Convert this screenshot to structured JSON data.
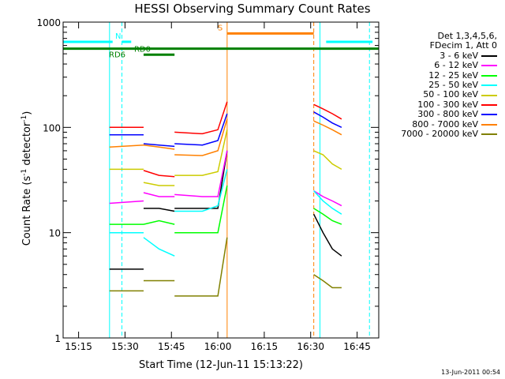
{
  "chart_data": {
    "type": "line",
    "title": "HESSI Observing Summary Count Rates",
    "xlabel": "Start Time (12-Jun-11 15:13:22)",
    "ylabel": "Count Rate (s",
    "ylabel_sup": "-1",
    "ylabel_mid": " detector",
    "ylabel_end": ")",
    "y_scale": "log",
    "ylim": [
      1,
      1000
    ],
    "xlim": [
      "15:10",
      "16:52"
    ],
    "x_tick_labels": [
      "15:15",
      "15:30",
      "15:45",
      "16:00",
      "16:15",
      "16:30",
      "16:45"
    ],
    "y_tick_labels": [
      "1",
      "10",
      "100",
      "1000"
    ],
    "grid": false,
    "legend_position": "top-right",
    "legend_header": [
      "Det 1,3,4,5,6,",
      "FDecim 1, Att 0"
    ],
    "legend_entries": [
      "3 - 6 keV",
      "6 - 12 keV",
      "12 - 25 keV",
      "25 - 50 keV",
      "50 - 100 keV",
      "100 - 300 keV",
      "300 - 800 keV",
      "800 - 7000 keV",
      "7000 - 20000 keV"
    ],
    "colors": [
      "#000000",
      "#ff00ff",
      "#00ff00",
      "#00ffff",
      "#cccc00",
      "#ff0000",
      "#0000ff",
      "#ff8000",
      "#808000"
    ],
    "segments": [
      {
        "start": "15:25",
        "end": "15:36",
        "values": [
          [
            "15:25",
            4.5,
            19,
            12,
            10,
            40,
            100,
            85,
            65,
            2.8
          ],
          [
            "15:36",
            4.5,
            20,
            12,
            10,
            40,
            100,
            85,
            68,
            2.8
          ]
        ]
      },
      {
        "start": "15:36",
        "end": "15:46",
        "values": [
          [
            "15:36",
            17,
            24,
            12,
            9,
            30,
            39,
            70,
            68,
            3.5
          ],
          [
            "15:41",
            17,
            22,
            13,
            7,
            28,
            35,
            68,
            65,
            3.5
          ],
          [
            "15:46",
            16,
            22,
            12,
            6,
            28,
            34,
            66,
            62,
            3.5
          ]
        ]
      },
      {
        "start": "15:46",
        "end": "16:03",
        "values": [
          [
            "15:46",
            17,
            23,
            10,
            16,
            35,
            90,
            70,
            55,
            2.5
          ],
          [
            "15:55",
            17,
            22,
            10,
            16,
            35,
            87,
            68,
            54,
            2.5
          ],
          [
            "16:00",
            17,
            22,
            10,
            18,
            38,
            95,
            75,
            60,
            2.5
          ],
          [
            "16:03",
            60,
            60,
            28,
            40,
            95,
            175,
            135,
            120,
            9
          ]
        ]
      },
      {
        "start": "16:31",
        "end": "16:40",
        "values": [
          [
            "16:31",
            15,
            25,
            17,
            25,
            60,
            165,
            140,
            115,
            4
          ],
          [
            "16:34",
            10,
            22,
            15,
            20,
            55,
            150,
            125,
            105,
            3.5
          ],
          [
            "16:37",
            7,
            20,
            13,
            17,
            45,
            135,
            110,
            95,
            3
          ],
          [
            "16:40",
            6,
            18,
            12,
            15,
            40,
            120,
            100,
            85,
            3
          ]
        ]
      }
    ],
    "markers": [
      {
        "label": "N",
        "color": "#00ffff",
        "value": 650,
        "start": "15:10",
        "end": "15:26"
      },
      {
        "label": "",
        "color": "#00ffff",
        "value": 650,
        "start": "15:29",
        "end": "15:32"
      },
      {
        "label": "",
        "color": "#00ffff",
        "value": 650,
        "start": "16:35",
        "end": "16:50"
      },
      {
        "label": "S",
        "color": "#ff8000",
        "value": 780,
        "start": "16:03",
        "end": "16:31"
      },
      {
        "label": "RD6",
        "color": "#008000",
        "value": 560,
        "start": "15:10",
        "end": "16:52"
      },
      {
        "label": "RD0",
        "color": "#008000",
        "value": 490,
        "start": "15:36",
        "end": "15:46"
      }
    ],
    "vertical_lines": [
      {
        "time": "15:25",
        "color": "#00ffff",
        "style": "solid"
      },
      {
        "time": "15:29",
        "color": "#00ffff",
        "style": "dashed"
      },
      {
        "time": "16:03",
        "color": "#ff8000",
        "style": "solid"
      },
      {
        "time": "16:31",
        "color": "#ff8000",
        "style": "dashed"
      },
      {
        "time": "16:33",
        "color": "#00ffff",
        "style": "solid"
      },
      {
        "time": "16:49",
        "color": "#00ffff",
        "style": "dashed"
      }
    ]
  },
  "footer_date": "13-Jun-2011 00:54"
}
